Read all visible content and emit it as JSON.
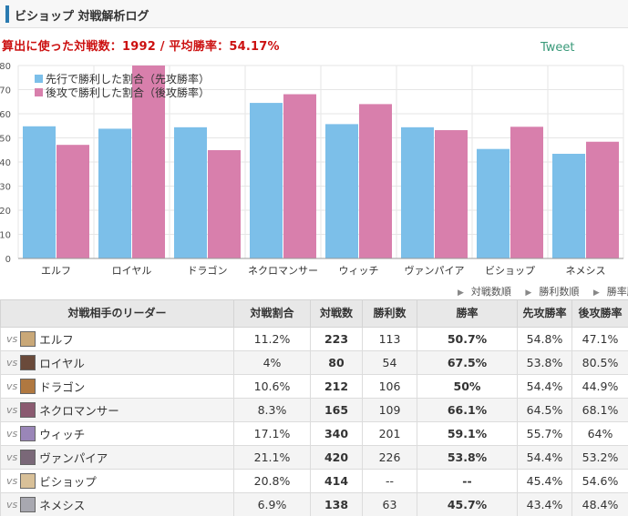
{
  "header": {
    "title": "ビショップ 対戦解析ログ"
  },
  "summary_text": "算出に使った対戦数：1992 / 平均勝率：54.17%",
  "tweet_label": "Tweet",
  "sort_links": [
    "対戦数順",
    "勝利数順",
    "勝率順"
  ],
  "colors": {
    "first": "#7cbfe9",
    "second": "#d87fac",
    "rate": "#e07020",
    "summary": "#cc1111"
  },
  "chart_data": {
    "type": "bar",
    "categories": [
      "エルフ",
      "ロイヤル",
      "ドラゴン",
      "ネクロマンサー",
      "ウィッチ",
      "ヴァンパイア",
      "ビショップ",
      "ネメシス"
    ],
    "series": [
      {
        "name": "先行で勝利した割合（先攻勝率）",
        "values": [
          54.8,
          53.8,
          54.4,
          64.5,
          55.7,
          54.4,
          45.4,
          43.4
        ]
      },
      {
        "name": "後攻で勝利した割合（後攻勝率）",
        "values": [
          47.1,
          80.5,
          44.9,
          68.1,
          64,
          53.2,
          54.6,
          48.4
        ]
      }
    ],
    "ylim": [
      0,
      80
    ],
    "yticks": [
      0,
      10,
      20,
      30,
      40,
      50,
      60,
      70,
      80
    ],
    "grid": true,
    "legend": "top-left"
  },
  "table": {
    "headers": [
      "対戦相手のリーダー",
      "対戦割合",
      "対戦数",
      "勝利数",
      "勝率",
      "先攻勝率",
      "後攻勝率"
    ],
    "vs_label": "vs",
    "rows": [
      {
        "opponent": "エルフ",
        "ratio": "11.2%",
        "games": "223",
        "wins": "113",
        "winrate": "50.7%",
        "first": "54.8%",
        "second": "47.1%",
        "avatar": "#c9a878"
      },
      {
        "opponent": "ロイヤル",
        "ratio": "4%",
        "games": "80",
        "wins": "54",
        "winrate": "67.5%",
        "first": "53.8%",
        "second": "80.5%",
        "avatar": "#6a4a3a"
      },
      {
        "opponent": "ドラゴン",
        "ratio": "10.6%",
        "games": "212",
        "wins": "106",
        "winrate": "50%",
        "first": "54.4%",
        "second": "44.9%",
        "avatar": "#b07840"
      },
      {
        "opponent": "ネクロマンサー",
        "ratio": "8.3%",
        "games": "165",
        "wins": "109",
        "winrate": "66.1%",
        "first": "64.5%",
        "second": "68.1%",
        "avatar": "#8a5a70"
      },
      {
        "opponent": "ウィッチ",
        "ratio": "17.1%",
        "games": "340",
        "wins": "201",
        "winrate": "59.1%",
        "first": "55.7%",
        "second": "64%",
        "avatar": "#9a86b8"
      },
      {
        "opponent": "ヴァンパイア",
        "ratio": "21.1%",
        "games": "420",
        "wins": "226",
        "winrate": "53.8%",
        "first": "54.4%",
        "second": "53.2%",
        "avatar": "#7a6878"
      },
      {
        "opponent": "ビショップ",
        "ratio": "20.8%",
        "games": "414",
        "wins": "--",
        "winrate": "--",
        "first": "45.4%",
        "second": "54.6%",
        "avatar": "#d8c098"
      },
      {
        "opponent": "ネメシス",
        "ratio": "6.9%",
        "games": "138",
        "wins": "63",
        "winrate": "45.7%",
        "first": "43.4%",
        "second": "48.4%",
        "avatar": "#a8a8b0"
      }
    ]
  }
}
